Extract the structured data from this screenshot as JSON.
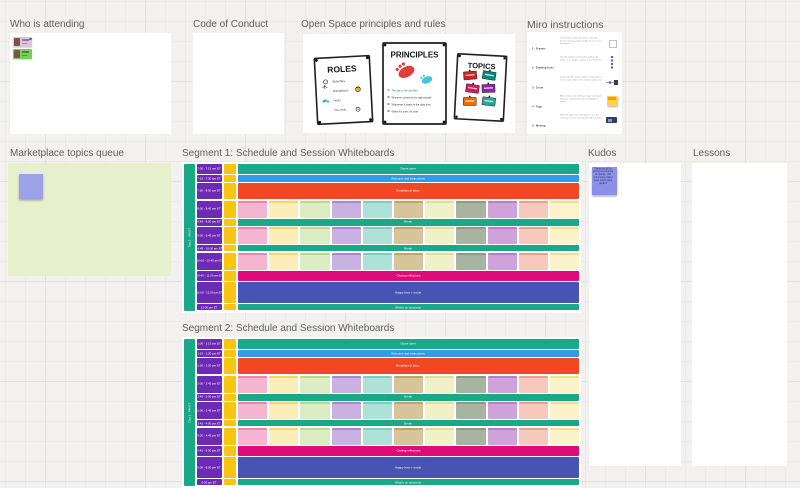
{
  "palette": {
    "teal": "#1aa887",
    "blue": "#3399e8",
    "red": "#ef4823",
    "magenta": "#e00b7b",
    "indigo": "#4754b4",
    "purple": "#6d2ab5",
    "yellow": "#f9c513"
  },
  "session_card_colors": [
    {
      "fill": "#f3b5cf",
      "edge": "#e886ae"
    },
    {
      "fill": "#fcedb9",
      "edge": "#f3d867"
    },
    {
      "fill": "#dcecc3",
      "edge": "#b8d98d"
    },
    {
      "fill": "#c9b1e2",
      "edge": "#a886d0"
    },
    {
      "fill": "#aee2d9",
      "edge": "#7ecdc0"
    },
    {
      "fill": "#d6c59a",
      "edge": "#bfa668"
    },
    {
      "fill": "#f0f1c7",
      "edge": "#dde098"
    },
    {
      "fill": "#a9b3a1",
      "edge": "#8c9a84"
    },
    {
      "fill": "#cfa3da",
      "edge": "#b87fc9"
    },
    {
      "fill": "#f7c9bc",
      "edge": "#ec9e8c"
    },
    {
      "fill": "#fdf3cb",
      "edge": "#f2df8d"
    }
  ],
  "frames": {
    "who_is_attending": {
      "title": "Who is attending",
      "attendees": [
        {
          "color": "#ddc3dc",
          "presence_dot": "#4262ff"
        },
        {
          "color": "#7fc95e"
        }
      ]
    },
    "code_of_conduct": {
      "title": "Code of Conduct"
    },
    "open_space": {
      "title": "Open Space principles and rules",
      "posters": {
        "roles": {
          "title": "ROLES",
          "items": [
            "Butterflies",
            "Bumblebees",
            "Hosts",
            "The circle"
          ]
        },
        "principles": {
          "title": "PRINCIPLES",
          "bullets": [
            "The law of the two feet",
            "Whoever comes is the right people",
            "Whenever it starts is the right time",
            "When it's over, it's over"
          ]
        },
        "topics": {
          "title": "TOPICS",
          "card_colors": [
            "#c62828",
            "#00897b",
            "#d81b60",
            "#8e24aa",
            "#ef6c00",
            "#26a69a"
          ]
        }
      }
    },
    "miro_instructions": {
      "title": "Miro instructions",
      "items": [
        {
          "step": "1 - Frames",
          "text": "This board is split into frames. Use the frames panel to jump straight to any area of the board.",
          "icon": "frame"
        },
        {
          "step": "2 - Drawing tools",
          "text": "Use the toolbar on the left to add sticky notes, text, shapes, arrows and comments.",
          "icon": "toolbar"
        },
        {
          "step": "3 - Zoom",
          "text": "Zoom with the mouse wheel, trackpad pinch or the zoom slider in the bottom right corner.",
          "icon": "zoom"
        },
        {
          "step": "4 - Tags",
          "text": "Add a sticky note with your topic and tag it with your name before the marketplace opens.",
          "icon": "sticky"
        },
        {
          "step": "5 - Moving",
          "text": "Hold the space bar and drag, or use the minimap, to move quickly around the board.",
          "icon": "minimap"
        }
      ]
    },
    "marketplace": {
      "title": "Marketplace topics queue",
      "bg": "#e7efcd",
      "sticky_color": "#9ba2e9"
    },
    "segment1": {
      "title": "Segment 1: Schedule and Session Whiteboards",
      "day_label": "Day 1 · AM ET",
      "rows": [
        {
          "time": "7:00 - 7:15 am ET",
          "kind": "band",
          "color": "teal",
          "label": "Doors open",
          "h": 9.5
        },
        {
          "time": "7:15 - 7:30 am ET",
          "kind": "band",
          "color": "blue",
          "label": "Welcome and instructions",
          "h": 7
        },
        {
          "time": "7:30 - 8:00 am ET",
          "kind": "band",
          "color": "red",
          "label": "Breakfast of ideas",
          "h": 16
        },
        {
          "time": "8:00 - 8:45 am ET",
          "kind": "cards",
          "h": 17
        },
        {
          "time": "8:45 - 9:00 am ET",
          "kind": "band",
          "color": "teal",
          "label": "Break",
          "h": 6.5
        },
        {
          "time": "9:00 - 9:45 am ET",
          "kind": "cards",
          "h": 17
        },
        {
          "time": "9:45 - 10:00 am ET",
          "kind": "band",
          "color": "teal",
          "label": "Break",
          "h": 6
        },
        {
          "time": "10:00 - 10:45 am ET",
          "kind": "cards",
          "h": 17
        },
        {
          "time": "10:45 - 11:00 am ET",
          "kind": "band",
          "color": "magenta",
          "label": "Closing reflections",
          "h": 9.5
        },
        {
          "time": "11:00 - 12:00 pm ET",
          "kind": "band",
          "color": "indigo",
          "label": "Happy hour + social",
          "h": 21
        },
        {
          "time": "12:00 pm ET",
          "kind": "band",
          "color": "teal",
          "label": "What's on tomorrow",
          "h": 6
        }
      ]
    },
    "segment2": {
      "title": "Segment 2: Schedule and Session Whiteboards",
      "day_label": "Day 1 · PM ET",
      "rows": [
        {
          "time": "1:00 - 1:15 pm ET",
          "kind": "band",
          "color": "teal",
          "label": "Doors open",
          "h": 9.5
        },
        {
          "time": "1:15 - 1:30 pm ET",
          "kind": "band",
          "color": "blue",
          "label": "Welcome and instructions",
          "h": 7
        },
        {
          "time": "1:30 - 2:00 pm ET",
          "kind": "band",
          "color": "red",
          "label": "Breakfast of ideas",
          "h": 16
        },
        {
          "time": "2:00 - 2:45 pm ET",
          "kind": "cards",
          "h": 17
        },
        {
          "time": "2:45 - 3:00 pm ET",
          "kind": "band",
          "color": "teal",
          "label": "Break",
          "h": 6.5
        },
        {
          "time": "3:00 - 3:45 pm ET",
          "kind": "cards",
          "h": 17
        },
        {
          "time": "3:45 - 4:00 pm ET",
          "kind": "band",
          "color": "teal",
          "label": "Break",
          "h": 6
        },
        {
          "time": "4:00 - 4:45 pm ET",
          "kind": "cards",
          "h": 17
        },
        {
          "time": "4:45 - 5:00 pm ET",
          "kind": "band",
          "color": "magenta",
          "label": "Closing reflections",
          "h": 9.5
        },
        {
          "time": "5:00 - 6:00 pm ET",
          "kind": "band",
          "color": "indigo",
          "label": "Happy hour + social",
          "h": 21
        },
        {
          "time": "6:00 pm ET",
          "kind": "band",
          "color": "teal",
          "label": "What's on tomorrow",
          "h": 6
        }
      ]
    },
    "kudos": {
      "title": "Kudos",
      "sticky": {
        "color": "#8a90e6",
        "text": "Thank you all for joining and sharing so openly - this community makes open space days great ♥"
      }
    },
    "lessons": {
      "title": "Lessons"
    }
  }
}
